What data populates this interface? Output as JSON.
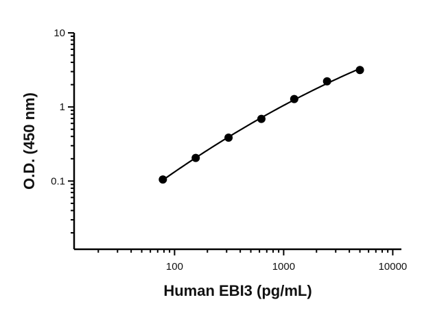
{
  "chart_data": {
    "type": "scatter",
    "title": "",
    "xlabel": "Human EBI3 (pg/mL)",
    "ylabel": "O.D. (450 nm)",
    "x_scale": "log",
    "y_scale": "log",
    "xlim": [
      12,
      12000
    ],
    "ylim": [
      0.012,
      10
    ],
    "x_ticks": [
      {
        "value": 100,
        "label": "100"
      },
      {
        "value": 1000,
        "label": "1000"
      },
      {
        "value": 10000,
        "label": "10000"
      }
    ],
    "y_ticks": [
      {
        "value": 0.1,
        "label": "0.1"
      },
      {
        "value": 1,
        "label": "1"
      },
      {
        "value": 10,
        "label": "10"
      }
    ],
    "grid": false,
    "legend": "none",
    "series": [
      {
        "x": [
          78.1,
          156.3,
          312.5,
          625,
          1250,
          2500,
          5000
        ],
        "y": [
          0.105,
          0.205,
          0.385,
          0.69,
          1.28,
          2.22,
          3.15
        ]
      }
    ],
    "fit_curve": true,
    "colors": {
      "marker": "#000000",
      "line": "#000000"
    }
  }
}
